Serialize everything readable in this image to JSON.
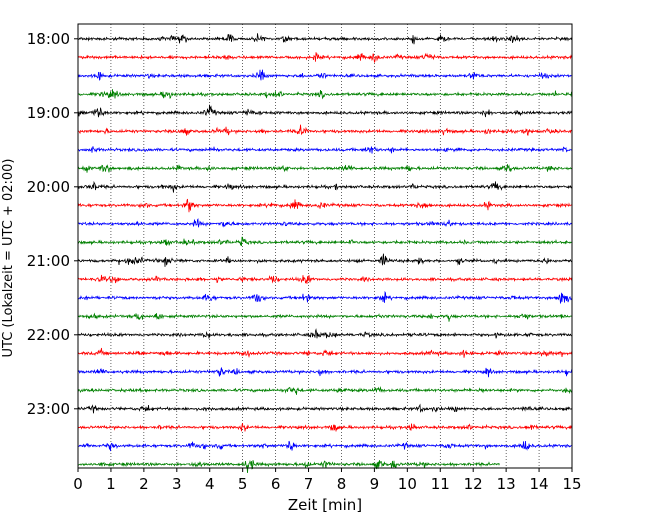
{
  "chart_data": {
    "type": "line",
    "title": "",
    "xlabel": "Zeit  [min]",
    "ylabel": "UTC (Lokalzeit = UTC + 02:00)",
    "xlim": [
      0,
      15
    ],
    "x_ticks": [
      "0",
      "1",
      "2",
      "3",
      "4",
      "5",
      "6",
      "7",
      "8",
      "9",
      "10",
      "11",
      "12",
      "13",
      "14",
      "15"
    ],
    "y_tick_labels": [
      "18:00",
      "19:00",
      "20:00",
      "21:00",
      "22:00",
      "23:00"
    ],
    "grid": "vertical dotted lines at each minute",
    "legend": "none",
    "trace_interval_min": 15,
    "colors_cycle": [
      "#000000",
      "#ff0000",
      "#0000ff",
      "#008000"
    ],
    "series": [
      {
        "start": "18:00",
        "color": "#000000",
        "end_min": 15
      },
      {
        "start": "18:15",
        "color": "#ff0000",
        "end_min": 15
      },
      {
        "start": "18:30",
        "color": "#0000ff",
        "end_min": 15
      },
      {
        "start": "18:45",
        "color": "#008000",
        "end_min": 15
      },
      {
        "start": "19:00",
        "color": "#000000",
        "end_min": 15
      },
      {
        "start": "19:15",
        "color": "#ff0000",
        "end_min": 15
      },
      {
        "start": "19:30",
        "color": "#0000ff",
        "end_min": 15
      },
      {
        "start": "19:45",
        "color": "#008000",
        "end_min": 15
      },
      {
        "start": "20:00",
        "color": "#000000",
        "end_min": 15
      },
      {
        "start": "20:15",
        "color": "#ff0000",
        "end_min": 15
      },
      {
        "start": "20:30",
        "color": "#0000ff",
        "end_min": 15
      },
      {
        "start": "20:45",
        "color": "#008000",
        "end_min": 15
      },
      {
        "start": "21:00",
        "color": "#000000",
        "end_min": 15
      },
      {
        "start": "21:15",
        "color": "#ff0000",
        "end_min": 15
      },
      {
        "start": "21:30",
        "color": "#0000ff",
        "end_min": 15
      },
      {
        "start": "21:45",
        "color": "#008000",
        "end_min": 15
      },
      {
        "start": "22:00",
        "color": "#000000",
        "end_min": 15
      },
      {
        "start": "22:15",
        "color": "#ff0000",
        "end_min": 15
      },
      {
        "start": "22:30",
        "color": "#0000ff",
        "end_min": 15
      },
      {
        "start": "22:45",
        "color": "#008000",
        "end_min": 15
      },
      {
        "start": "23:00",
        "color": "#000000",
        "end_min": 15
      },
      {
        "start": "23:15",
        "color": "#ff0000",
        "end_min": 15
      },
      {
        "start": "23:30",
        "color": "#0000ff",
        "end_min": 15
      },
      {
        "start": "23:45",
        "color": "#008000",
        "end_min": 12.8
      }
    ],
    "notable_events": [
      {
        "trace": "21:00",
        "minute": 9.3
      },
      {
        "trace": "23:30",
        "minute": 6.45
      }
    ]
  }
}
